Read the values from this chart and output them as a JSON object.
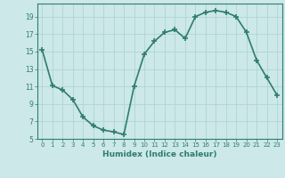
{
  "x": [
    0,
    1,
    2,
    3,
    4,
    5,
    6,
    7,
    8,
    9,
    10,
    11,
    12,
    13,
    14,
    15,
    16,
    17,
    18,
    19,
    20,
    21,
    22,
    23
  ],
  "y": [
    15.2,
    11.1,
    10.6,
    9.5,
    7.5,
    6.5,
    6.0,
    5.8,
    5.5,
    11.0,
    14.7,
    16.2,
    17.2,
    17.5,
    16.5,
    19.0,
    19.5,
    19.7,
    19.5,
    19.0,
    17.2,
    14.0,
    12.0,
    10.0
  ],
  "xlabel": "Humidex (Indice chaleur)",
  "ylim": [
    5,
    20
  ],
  "xlim": [
    -0.5,
    23.5
  ],
  "yticks": [
    5,
    7,
    9,
    11,
    13,
    15,
    17,
    19
  ],
  "xticks": [
    0,
    1,
    2,
    3,
    4,
    5,
    6,
    7,
    8,
    9,
    10,
    11,
    12,
    13,
    14,
    15,
    16,
    17,
    18,
    19,
    20,
    21,
    22,
    23
  ],
  "line_color": "#2e7d6e",
  "bg_color": "#cce8e8",
  "grid_color": "#b0d4d4",
  "marker": "+",
  "marker_size": 4,
  "linewidth": 1.2
}
